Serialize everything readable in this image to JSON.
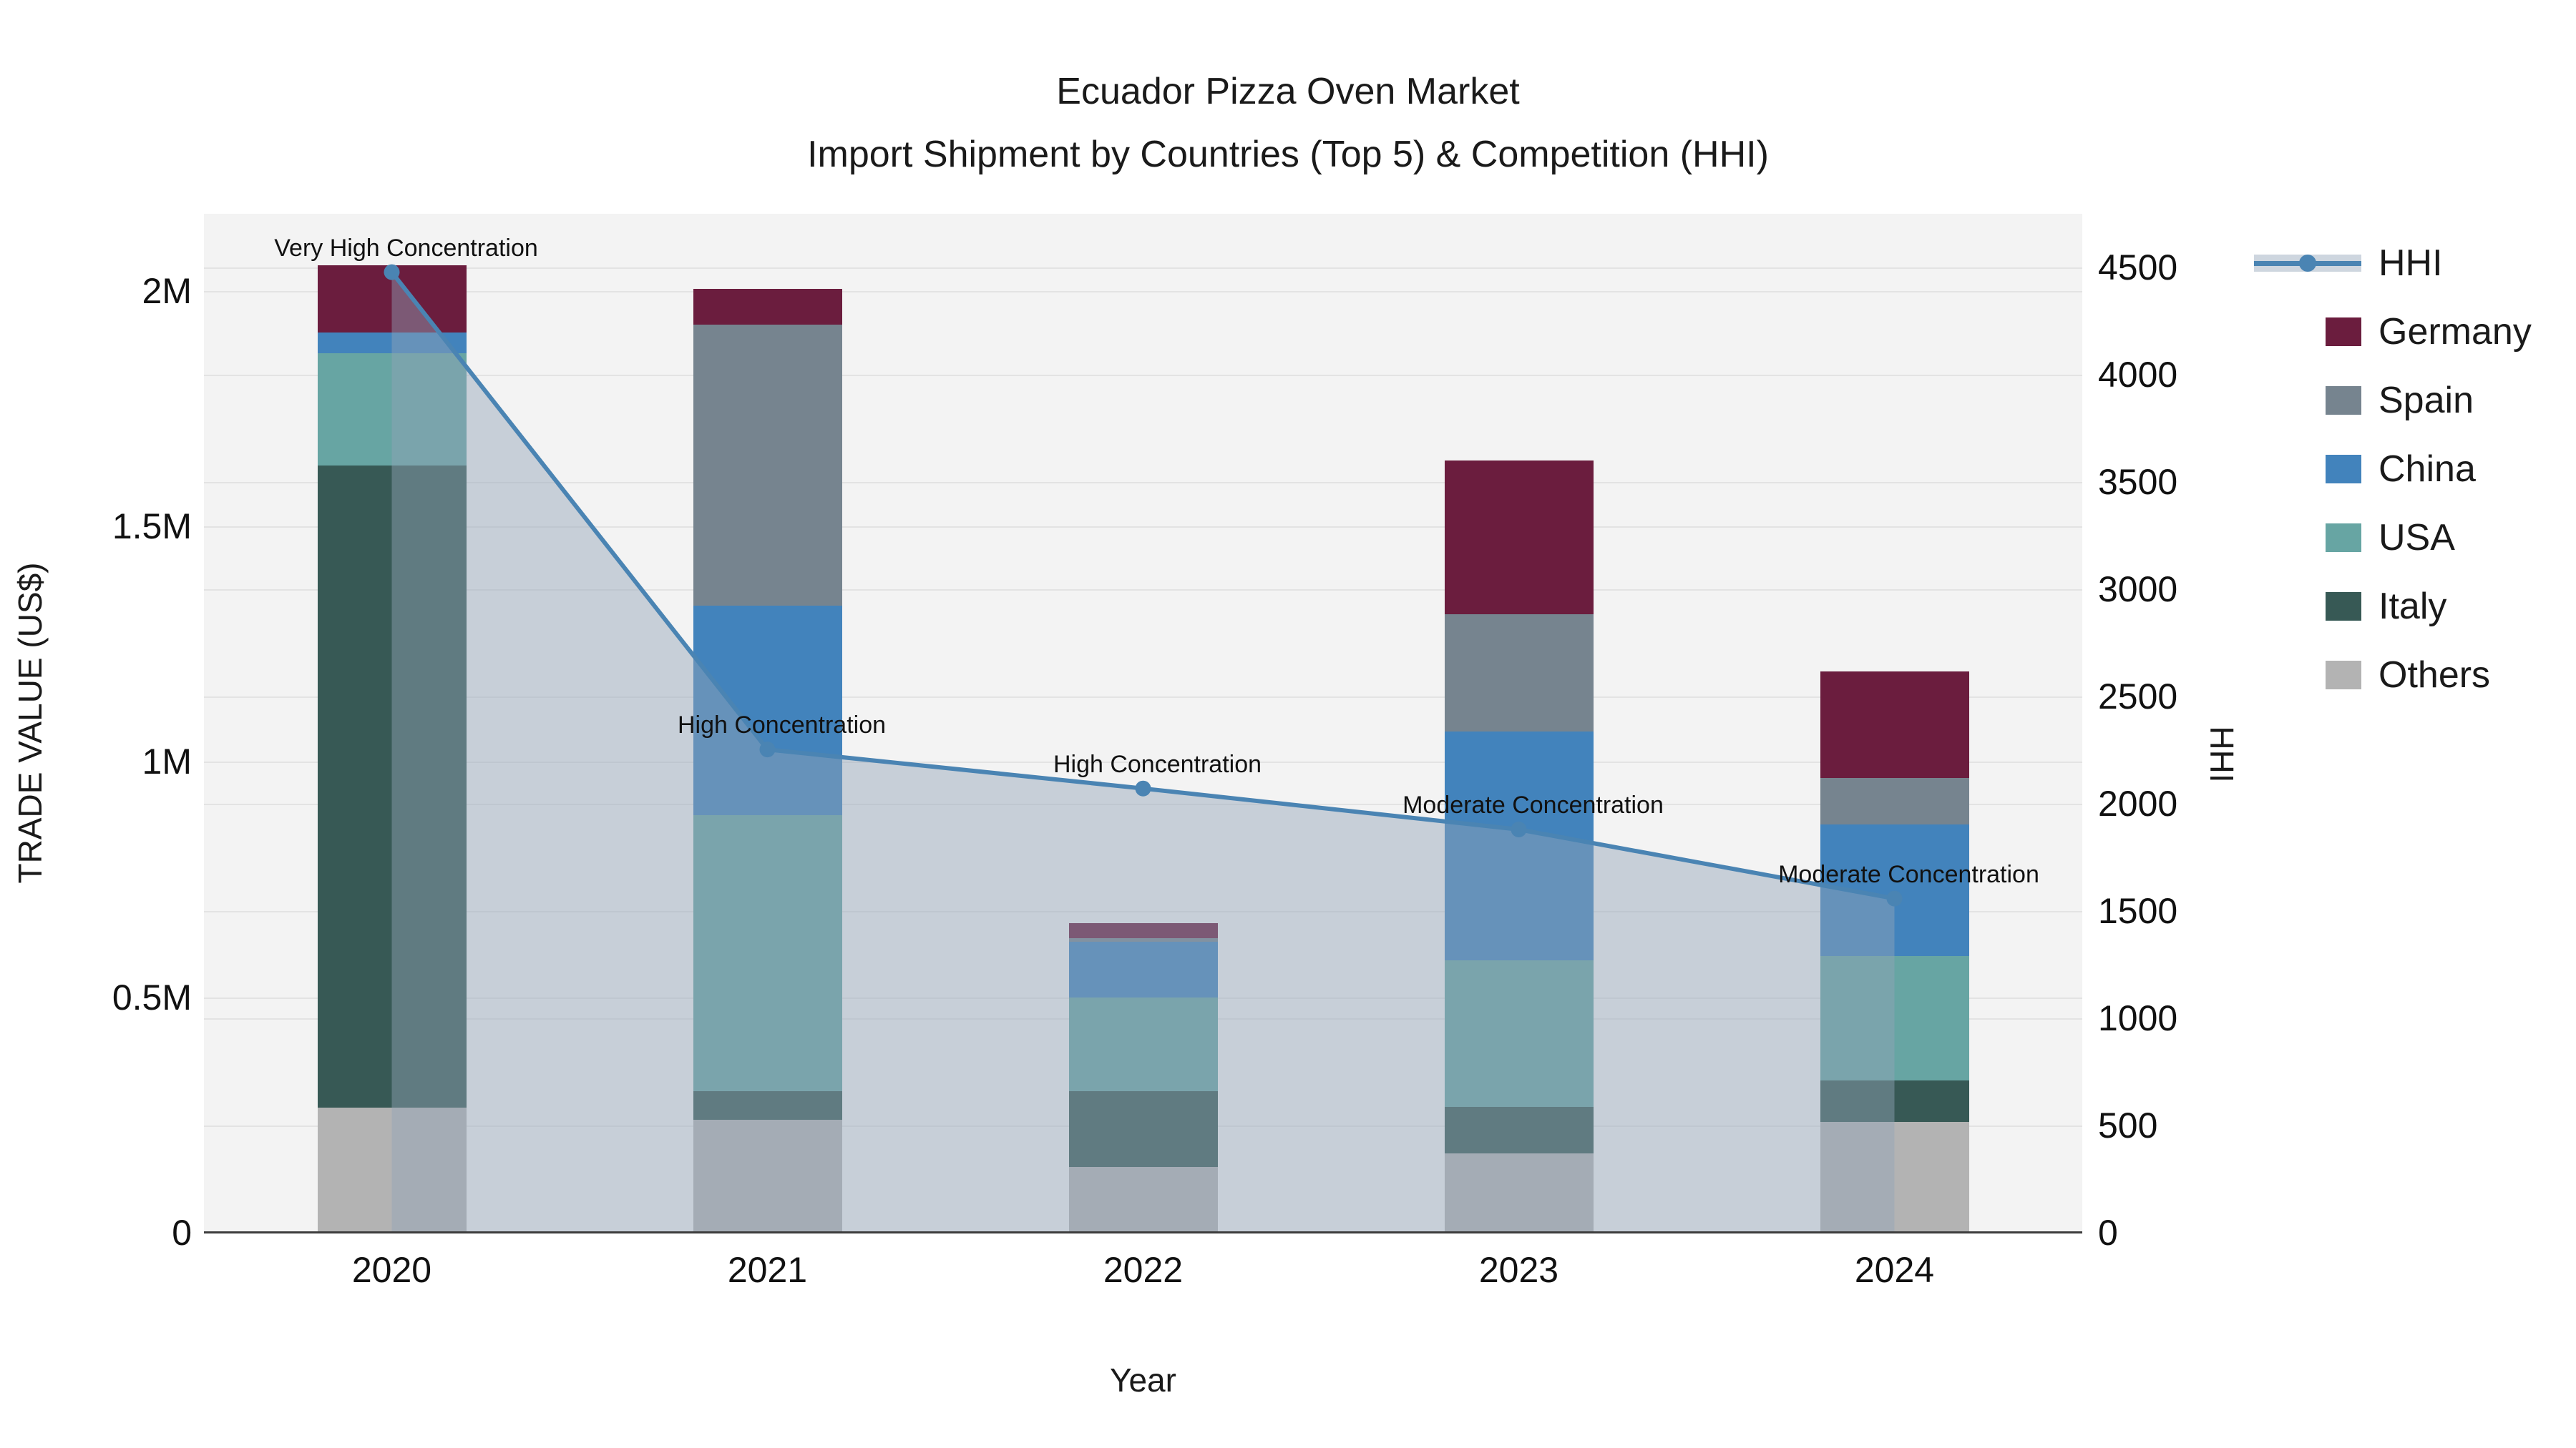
{
  "title": {
    "line1": "Ecuador Pizza Oven Market",
    "line2": "Import Shipment by Countries (Top 5) & Competition (HHI)"
  },
  "axes": {
    "x": {
      "title": "Year"
    },
    "y_left": {
      "title": "TRADE VALUE (US$)",
      "ticks": [
        {
          "label": "0",
          "value": 0
        },
        {
          "label": "0.5M",
          "value": 500000
        },
        {
          "label": "1M",
          "value": 1000000
        },
        {
          "label": "1.5M",
          "value": 1500000
        },
        {
          "label": "2M",
          "value": 2000000
        }
      ]
    },
    "y_right": {
      "title": "HHI",
      "ticks": [
        {
          "label": "0",
          "value": 0
        },
        {
          "label": "500",
          "value": 500
        },
        {
          "label": "1000",
          "value": 1000
        },
        {
          "label": "1500",
          "value": 1500
        },
        {
          "label": "2000",
          "value": 2000
        },
        {
          "label": "2500",
          "value": 2500
        },
        {
          "label": "3000",
          "value": 3000
        },
        {
          "label": "3500",
          "value": 3500
        },
        {
          "label": "4000",
          "value": 4000
        },
        {
          "label": "4500",
          "value": 4500
        }
      ]
    }
  },
  "legend": {
    "items": [
      {
        "label": "HHI",
        "type": "line",
        "color": "#4A84B3"
      },
      {
        "label": "Germany",
        "type": "swatch",
        "color": "#6B1D3E"
      },
      {
        "label": "Spain",
        "type": "swatch",
        "color": "#76848F"
      },
      {
        "label": "China",
        "type": "swatch",
        "color": "#4283BC"
      },
      {
        "label": "USA",
        "type": "swatch",
        "color": "#67A5A3"
      },
      {
        "label": "Italy",
        "type": "swatch",
        "color": "#375955"
      },
      {
        "label": "Others",
        "type": "swatch",
        "color": "#B3B3B3"
      }
    ]
  },
  "chart_data": {
    "type": "bar+line",
    "title": "Ecuador Pizza Oven Market — Import Shipment by Countries (Top 5) & Competition (HHI)",
    "categories": [
      "2020",
      "2021",
      "2022",
      "2023",
      "2024"
    ],
    "stack_order_bottom_to_top": [
      "Others",
      "Italy",
      "USA",
      "China",
      "Spain",
      "Germany"
    ],
    "series": [
      {
        "name": "Germany",
        "color": "#6B1D3E",
        "values": [
          143000,
          76000,
          31000,
          326000,
          226000
        ]
      },
      {
        "name": "Spain",
        "color": "#76848F",
        "values": [
          0,
          596000,
          8000,
          249000,
          99000
        ]
      },
      {
        "name": "China",
        "color": "#4283BC",
        "values": [
          44000,
          445000,
          119000,
          486000,
          280000
        ]
      },
      {
        "name": "USA",
        "color": "#67A5A3",
        "values": [
          238000,
          587000,
          199000,
          311000,
          264000
        ]
      },
      {
        "name": "Italy",
        "color": "#375955",
        "values": [
          1364000,
          60000,
          161000,
          100000,
          87000
        ]
      },
      {
        "name": "Others",
        "color": "#B3B3B3",
        "values": [
          266000,
          240000,
          139000,
          168000,
          236000
        ]
      }
    ],
    "bar_totals": [
      2055000,
      2004000,
      657000,
      1640000,
      1192000
    ],
    "line_series": {
      "name": "HHI",
      "axis": "right",
      "color": "#4A84B3",
      "fill": "rgba(146,163,184,0.45)",
      "values": [
        4478,
        2253,
        2071,
        1880,
        1558
      ]
    },
    "annotations": [
      {
        "category": "2020",
        "text": "Very High Concentration"
      },
      {
        "category": "2021",
        "text": "High Concentration"
      },
      {
        "category": "2022",
        "text": "High Concentration"
      },
      {
        "category": "2023",
        "text": "Moderate Concentration"
      },
      {
        "category": "2024",
        "text": "Moderate Concentration"
      }
    ],
    "xlabel": "Year",
    "ylabel_left": "TRADE VALUE (US$)",
    "ylabel_right": "HHI",
    "ylim_left": [
      0,
      2163700
    ],
    "ylim_right": [
      0,
      4750
    ],
    "grid": true,
    "legend_position": "right"
  },
  "colors": {
    "plot_bg": "#F3F3F3",
    "fig_bg": "#FFFFFF",
    "gridline": "#E3E3E3",
    "axis_line": "#3C3C3C",
    "text": "#1A1A1A"
  }
}
